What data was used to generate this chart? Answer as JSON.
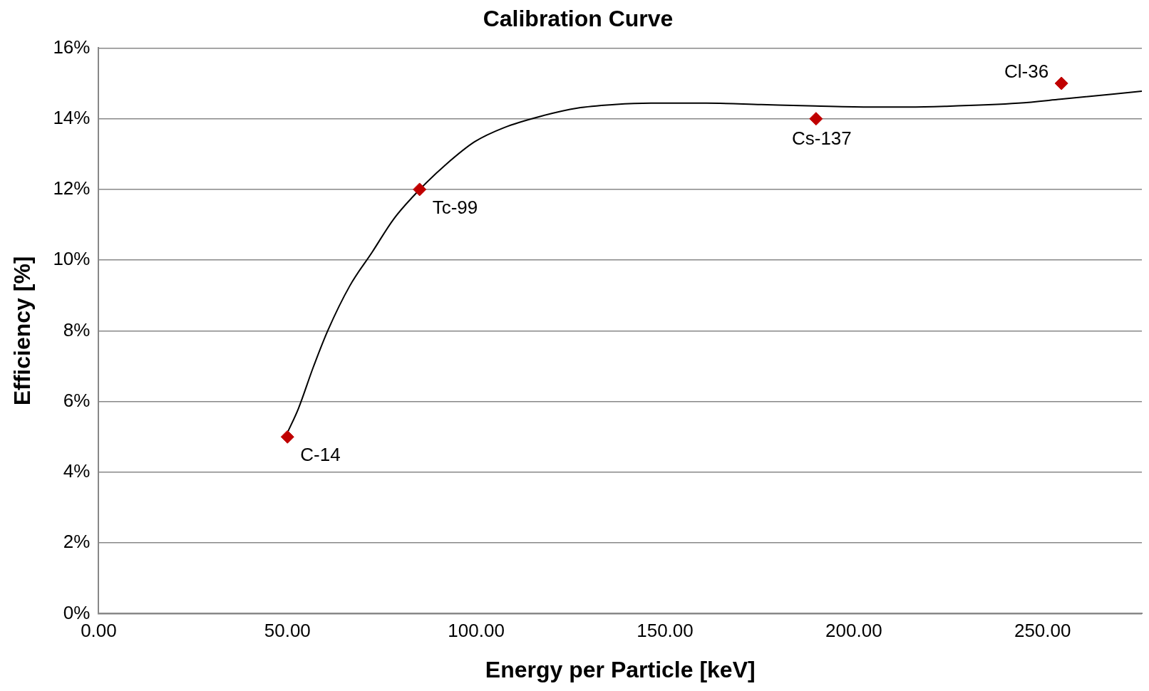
{
  "chart_data": {
    "type": "scatter",
    "title": "Calibration Curve",
    "xlabel": "Energy per Particle [keV]",
    "ylabel": "Efficiency [%]",
    "series": [
      {
        "type": "line",
        "color": "#000000",
        "marker": "none",
        "x": [
          50.0,
          52.9,
          56.8,
          60.7,
          66.5,
          72.4,
          78.2,
          85.6,
          91.8,
          99.6,
          107.4,
          117.1,
          126.8,
          136.6,
          146.3,
          160.9,
          175.5,
          189.7,
          204.7,
          214.4,
          224.1,
          243.6,
          254.7,
          276.3
        ],
        "values": [
          5.12,
          5.8,
          6.96,
          8.01,
          9.27,
          10.22,
          11.17,
          12.06,
          12.69,
          13.35,
          13.75,
          14.07,
          14.3,
          14.4,
          14.44,
          14.44,
          14.4,
          14.36,
          14.33,
          14.33,
          14.35,
          14.44,
          14.55,
          14.78
        ]
      },
      {
        "type": "scatter",
        "color": "#c00000",
        "marker": "diamond",
        "x": [
          50,
          85,
          190,
          255
        ],
        "values": [
          5,
          12,
          14,
          15
        ]
      }
    ],
    "annotations": [
      {
        "text": "C-14",
        "x": 50,
        "y": 5
      },
      {
        "text": "Tc-99",
        "x": 85,
        "y": 12
      },
      {
        "text": "Cs-137",
        "x": 190,
        "y": 14
      },
      {
        "text": "Cl-36",
        "x": 255,
        "y": 15
      }
    ],
    "xlim": [
      0,
      276.3
    ],
    "xticks": [
      {
        "value": 0,
        "label": "0.00"
      },
      {
        "value": 50,
        "label": "50.00"
      },
      {
        "value": 100,
        "label": "100.00"
      },
      {
        "value": 150,
        "label": "150.00"
      },
      {
        "value": 200,
        "label": "200.00"
      },
      {
        "value": 250,
        "label": "250.00"
      }
    ],
    "ylim": [
      0,
      16
    ],
    "yticks": [
      {
        "value": 0,
        "label": "0%"
      },
      {
        "value": 2,
        "label": "2%"
      },
      {
        "value": 4,
        "label": "4%"
      },
      {
        "value": 6,
        "label": "6%"
      },
      {
        "value": 8,
        "label": "8%"
      },
      {
        "value": 10,
        "label": "10%"
      },
      {
        "value": 12,
        "label": "12%"
      },
      {
        "value": 14,
        "label": "14%"
      },
      {
        "value": 16,
        "label": "16%"
      }
    ],
    "grid": "y",
    "legend": false
  }
}
